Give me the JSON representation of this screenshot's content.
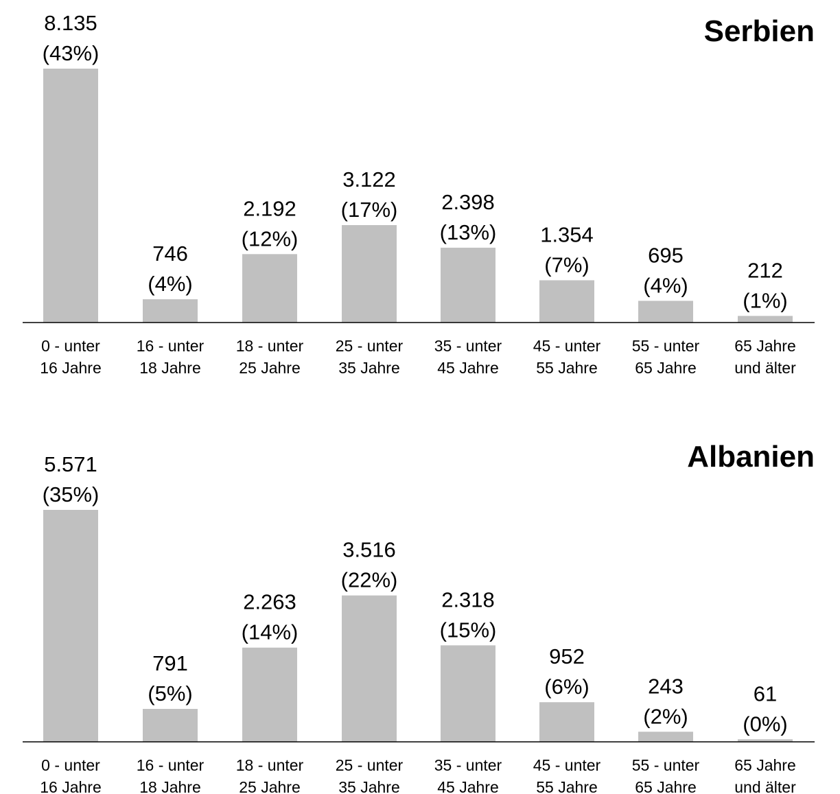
{
  "chart_data": [
    {
      "type": "bar",
      "title": "Serbien",
      "categories": [
        [
          "0 - unter",
          "16 Jahre"
        ],
        [
          "16 - unter",
          "18 Jahre"
        ],
        [
          "18 - unter",
          "25 Jahre"
        ],
        [
          "25 - unter",
          "35 Jahre"
        ],
        [
          "35 - unter",
          "45 Jahre"
        ],
        [
          "45 - unter",
          "55 Jahre"
        ],
        [
          "55 - unter",
          "65 Jahre"
        ],
        [
          "65 Jahre",
          "und älter"
        ]
      ],
      "values": [
        8135,
        746,
        2192,
        3122,
        2398,
        1354,
        695,
        212
      ],
      "value_labels": [
        "8.135",
        "746",
        "2.192",
        "3.122",
        "2.398",
        "1.354",
        "695",
        "212"
      ],
      "percent_labels": [
        "(43%)",
        "(4%)",
        "(12%)",
        "(17%)",
        "(13%)",
        "(7%)",
        "(4%)",
        "(1%)"
      ],
      "ylim": [
        0,
        8135
      ],
      "grid": false,
      "bar_color": "#c0c0c0"
    },
    {
      "type": "bar",
      "title": "Albanien",
      "categories": [
        [
          "0 - unter",
          "16 Jahre"
        ],
        [
          "16 - unter",
          "18 Jahre"
        ],
        [
          "18 - unter",
          "25 Jahre"
        ],
        [
          "25 - unter",
          "35 Jahre"
        ],
        [
          "35 - unter",
          "45 Jahre"
        ],
        [
          "45 - unter",
          "55 Jahre"
        ],
        [
          "55 - unter",
          "65 Jahre"
        ],
        [
          "65 Jahre",
          "und älter"
        ]
      ],
      "values": [
        5571,
        791,
        2263,
        3516,
        2318,
        952,
        243,
        61
      ],
      "value_labels": [
        "5.571",
        "791",
        "2.263",
        "3.516",
        "2.318",
        "952",
        "243",
        "61"
      ],
      "percent_labels": [
        "(35%)",
        "(5%)",
        "(14%)",
        "(22%)",
        "(15%)",
        "(6%)",
        "(2%)",
        "(0%)"
      ],
      "ylim": [
        0,
        5571
      ],
      "grid": false,
      "bar_color": "#c0c0c0"
    }
  ]
}
